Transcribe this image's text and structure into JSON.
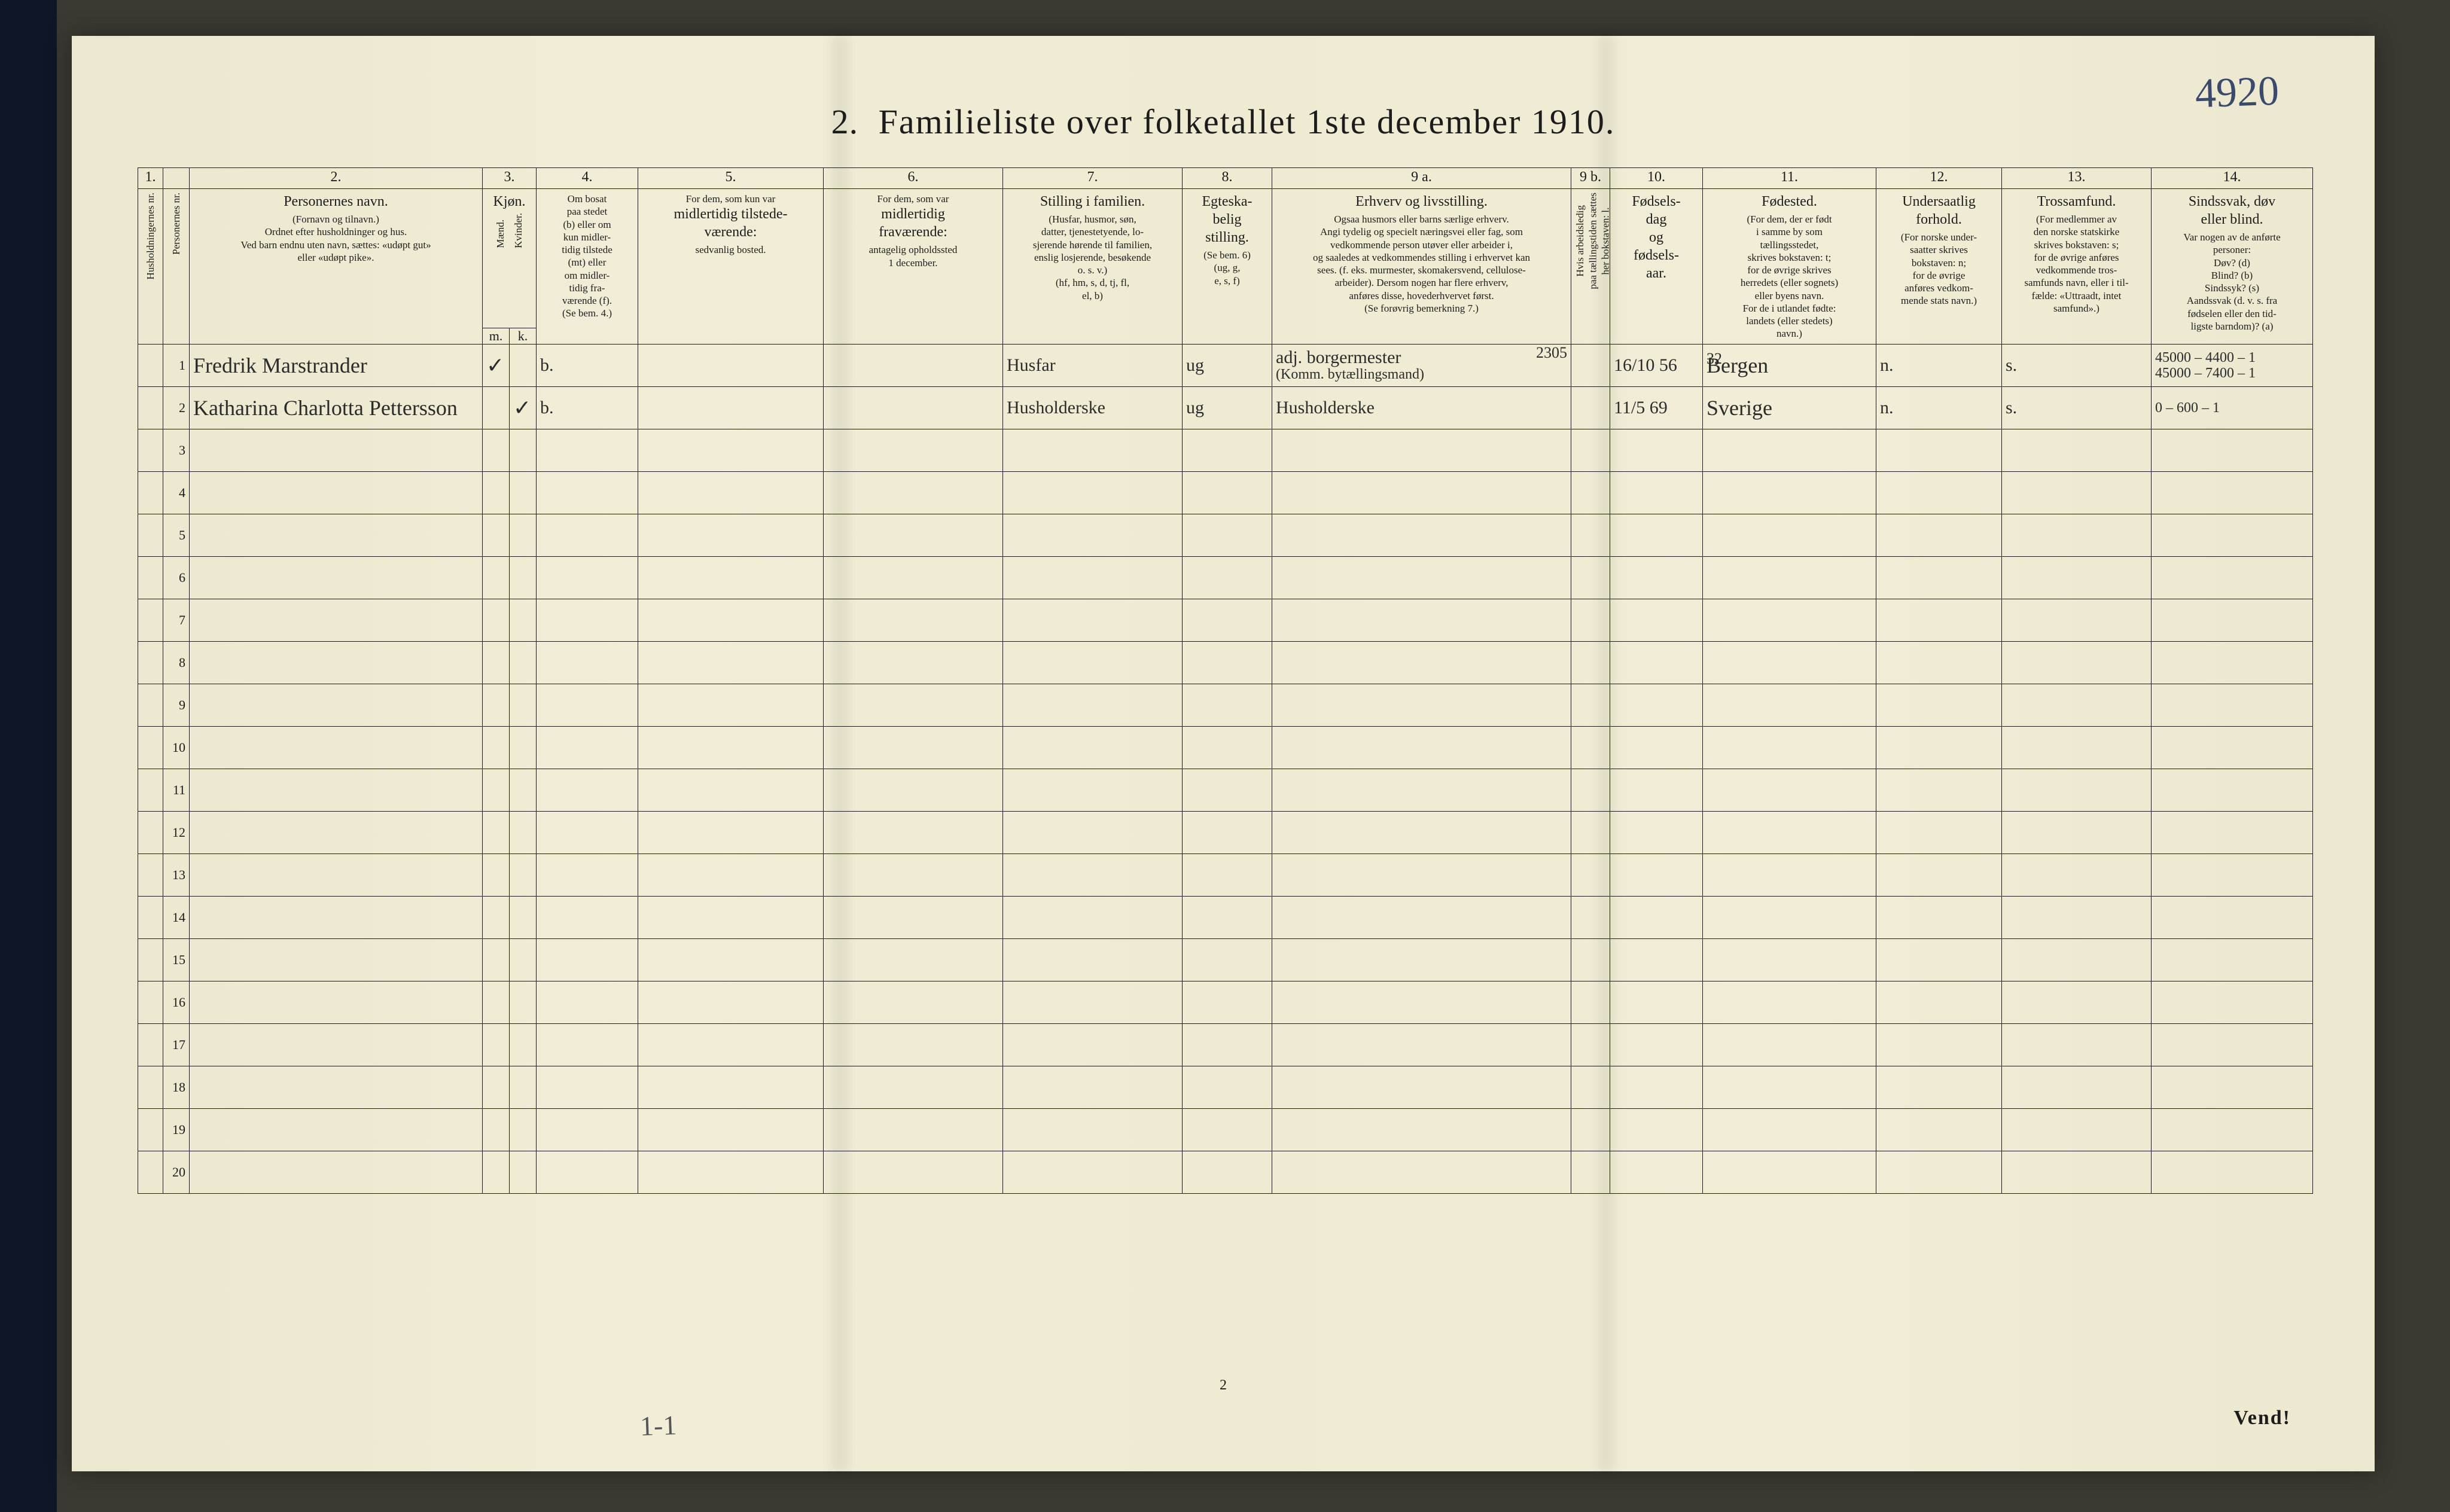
{
  "folio_number": "4920",
  "title_num": "2.",
  "title_main": "Familieliste over folketallet 1ste december 1910.",
  "footer_page": "2",
  "vend": "Vend!",
  "margin_note": "1-1",
  "colors": {
    "paper": "#f0ecd4",
    "ink": "#1c1c1c",
    "hand_ink": "#2b2b2b",
    "folio_ink": "#3b4a6a",
    "background": "#3a3a32",
    "edge": "#0d1726"
  },
  "column_numbers": [
    "1.",
    "",
    "2.",
    "3.",
    "4.",
    "5.",
    "6.",
    "7.",
    "8.",
    "9 a.",
    "9 b.",
    "10.",
    "11.",
    "12.",
    "13.",
    "14."
  ],
  "headers": {
    "c1_sub": "Husholdningernes nr.",
    "c2_sub": "Personernes nr.",
    "c3_lead": "Personernes navn.",
    "c3_sub": "(Fornavn og tilnavn.)\nOrdnet efter husholdninger og hus.\nVed barn endnu uten navn, sættes: «udøpt gut»\neller «udøpt pike».",
    "c4_lead": "Kjøn.",
    "c4a_sub": "Mænd.",
    "c4b_sub": "Kvinder.",
    "c4_foot_m": "m.",
    "c4_foot_k": "k.",
    "c5_lead": "Om bosat\npaa stedet\n(b) eller om\nkun midler-\ntidig tilstede\n(mt) eller\nom midler-\ntidig fra-\nværende (f).\n(Se bem. 4.)",
    "c6_lead": "For dem, som kun var",
    "c6_sub": "midlertidig tilstede-\nværende:",
    "c6_foot": "sedvanlig bosted.",
    "c7_lead": "For dem, som var",
    "c7_sub": "midlertidig\nfraværende:",
    "c7_foot": "antagelig opholdssted\n1 december.",
    "c8_lead": "Stilling i familien.",
    "c8_sub": "(Husfar, husmor, søn,\ndatter, tjenestetyende, lo-\nsjerende hørende til familien,\nenslig losjerende, besøkende\no. s. v.)\n(hf, hm, s, d, tj, fl,\nel, b)",
    "c9_lead": "Egteska-\nbelig\nstilling.",
    "c9_sub": "(Se bem. 6)\n(ug, g,\ne, s, f)",
    "c10_lead": "Erhverv og livsstilling.",
    "c10_sub": "Ogsaa husmors eller barns særlige erhverv.\nAngi tydelig og specielt næringsvei eller fag, som\nvedkommende person utøver eller arbeider i,\nog saaledes at vedkommendes stilling i erhvervet kan\nsees. (f. eks. murmester, skomakersvend, cellulose-\narbeider). Dersom nogen har flere erhverv,\nanføres disse, hovederhvervet først.\n(Se forøvrig bemerkning 7.)",
    "c11_sub": "Hvis arbeidsledig\npaa tællingstiden sættes\nher bokstaven: l.",
    "c12_lead": "Fødsels-\ndag\nog\nfødsels-\naar.",
    "c13_lead": "Fødested.",
    "c13_sub": "(For dem, der er født\ni samme by som\ntællingsstedet,\nskrives bokstaven: t;\nfor de øvrige skrives\nherredets (eller sognets)\neller byens navn.\nFor de i utlandet fødte:\nlandets (eller stedets)\nnavn.)",
    "c14_lead": "Undersaatlig\nforhold.",
    "c14_sub": "(For norske under-\nsaatter skrives\nbokstaven: n;\nfor de øvrige\nanføres vedkom-\nmende stats navn.)",
    "c15_lead": "Trossamfund.",
    "c15_sub": "(For medlemmer av\nden norske statskirke\nskrives bokstaven: s;\nfor de øvrige anføres\nvedkommende tros-\nsamfunds navn, eller i til-\nfælde: «Uttraadt, intet\nsamfund».)",
    "c16_lead": "Sindssvak, døv\neller blind.",
    "c16_sub": "Var nogen av de anførte\npersoner:\nDøv? (d)\nBlind? (b)\nSindssyk? (s)\nAandssvak (d. v. s. fra\nfødselen eller den tid-\nligste barndom)? (a)"
  },
  "rows": [
    {
      "num": "1",
      "name": "Fredrik Marstrander",
      "sex_m": "✓",
      "sex_k": "",
      "bosat": "b.",
      "mt_sted": "",
      "frav_sted": "",
      "stilling_fam": "Husfar",
      "egteskab": "ug",
      "erhverv": "adj. borgermester",
      "erhverv_top": "2305",
      "erhverv_sub": "(Komm. bytællingsmand)",
      "arbeidsl": "",
      "fodselsdag": "16/10 56",
      "fodested": "Bergen",
      "fodested_top": "32",
      "undersaat": "n.",
      "tros": "s.",
      "sinds": "45000 – 4400 – 1\n45000 – 7400 – 1"
    },
    {
      "num": "2",
      "name": "Katharina Charlotta Pettersson",
      "sex_m": "",
      "sex_k": "✓",
      "bosat": "b.",
      "mt_sted": "",
      "frav_sted": "",
      "stilling_fam": "Husholderske",
      "egteskab": "ug",
      "erhverv": "Husholderske",
      "erhverv_top": "",
      "erhverv_sub": "",
      "arbeidsl": "",
      "fodselsdag": "11/5 69",
      "fodested": "Sverige",
      "fodested_top": "",
      "undersaat": "n.",
      "tros": "s.",
      "sinds": "0 – 600 – 1"
    }
  ],
  "empty_rows": [
    "3",
    "4",
    "5",
    "6",
    "7",
    "8",
    "9",
    "10",
    "11",
    "12",
    "13",
    "14",
    "15",
    "16",
    "17",
    "18",
    "19",
    "20"
  ]
}
